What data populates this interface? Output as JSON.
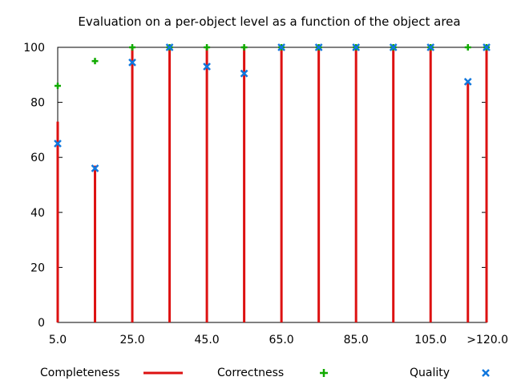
{
  "chart_data": {
    "type": "bar",
    "title": "Evaluation on a per-object level as a function of the object area",
    "xlabel": "",
    "ylabel": "",
    "x_tick_labels": [
      "5.0",
      "25.0",
      "45.0",
      "65.0",
      "85.0",
      "105.0",
      ">120.0"
    ],
    "x_tick_values": [
      5,
      25,
      45,
      65,
      85,
      105,
      120
    ],
    "x": [
      5,
      15,
      25,
      35,
      45,
      55,
      65,
      75,
      85,
      95,
      105,
      115,
      120
    ],
    "xlim": [
      5,
      120
    ],
    "y_ticks": [
      0,
      20,
      40,
      60,
      80,
      100
    ],
    "ylim": [
      0,
      100
    ],
    "legend_position": "bottom",
    "series": [
      {
        "name": "Completeness",
        "style": "impulses",
        "color": "#dd1111",
        "values": [
          73,
          57,
          100,
          100,
          100,
          100,
          100,
          100,
          100,
          100,
          100,
          88,
          100
        ]
      },
      {
        "name": "Correctness",
        "style": "plus",
        "color": "#11aa00",
        "values": [
          86,
          95,
          100,
          100,
          100,
          100,
          100,
          100,
          100,
          100,
          100,
          100,
          100
        ]
      },
      {
        "name": "Quality",
        "style": "cross",
        "color": "#1177dd",
        "values": [
          65,
          56,
          94.5,
          100,
          93,
          90.5,
          100,
          100,
          100,
          100,
          100,
          87.5,
          100
        ]
      }
    ]
  }
}
